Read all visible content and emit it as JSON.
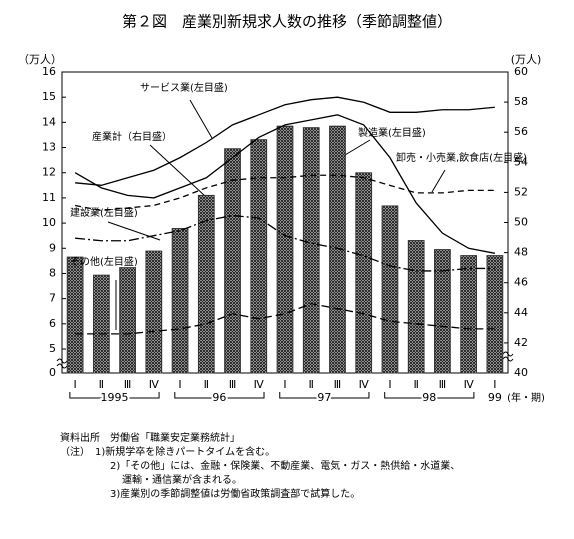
{
  "chart_data": {
    "type": "bar",
    "title": "第２図　産業別新規求人数の推移（季節調整値）",
    "categories": [
      "Ⅰ",
      "Ⅱ",
      "Ⅲ",
      "Ⅳ",
      "Ⅰ",
      "Ⅱ",
      "Ⅲ",
      "Ⅳ",
      "Ⅰ",
      "Ⅱ",
      "Ⅲ",
      "Ⅳ",
      "Ⅰ",
      "Ⅱ",
      "Ⅲ",
      "Ⅳ",
      "Ⅰ"
    ],
    "x_groups": [
      "1995",
      "96",
      "97",
      "98",
      "99"
    ],
    "xlabel": "(年・期)",
    "ylabel": "（万人）",
    "y2label": "(万人)",
    "ylim": [
      0,
      16
    ],
    "ybreak": [
      0,
      5
    ],
    "yticks": [
      0,
      5,
      6,
      7,
      8,
      9,
      10,
      11,
      12,
      13,
      14,
      15,
      16
    ],
    "y2lim": [
      40,
      60
    ],
    "y2ticks": [
      40,
      42,
      44,
      46,
      48,
      50,
      52,
      54,
      56,
      58,
      60
    ],
    "series": [
      {
        "name": "産業計（右目盛）",
        "axis": "y2",
        "kind": "bar",
        "color": "#333333",
        "values": [
          47.7,
          46.5,
          47.0,
          48.1,
          49.6,
          51.8,
          54.9,
          55.5,
          56.4,
          56.3,
          56.4,
          53.3,
          51.1,
          48.8,
          48.2,
          47.8,
          47.8
        ]
      },
      {
        "name": "サービス業(左目盛)",
        "kind": "line",
        "dash": "none",
        "color": "#000000",
        "values": [
          11.6,
          11.5,
          11.8,
          12.1,
          12.6,
          13.2,
          13.9,
          14.3,
          14.7,
          14.9,
          15.0,
          14.8,
          14.4,
          14.4,
          14.5,
          14.5,
          14.6
        ]
      },
      {
        "name": "製造業(左目盛)",
        "kind": "line",
        "dash": "none",
        "color": "#000000",
        "values": [
          12.0,
          11.4,
          11.1,
          11.0,
          11.4,
          11.8,
          12.6,
          13.4,
          13.9,
          14.1,
          14.3,
          13.9,
          12.6,
          10.8,
          9.6,
          9.0,
          8.8
        ]
      },
      {
        "name": "卸売・小売業,飲食店(左目盛)",
        "kind": "line",
        "dash": "6 4",
        "color": "#000000",
        "values": [
          10.7,
          10.5,
          10.6,
          10.7,
          11.0,
          11.4,
          11.7,
          11.8,
          11.8,
          11.9,
          11.9,
          11.8,
          11.5,
          11.2,
          11.2,
          11.3,
          11.3
        ]
      },
      {
        "name": "建設業(左目盛)",
        "kind": "line",
        "dash": "10 3 2 3",
        "color": "#000000",
        "values": [
          9.4,
          9.3,
          9.3,
          9.5,
          9.7,
          10.1,
          10.3,
          10.2,
          9.5,
          9.2,
          9.0,
          8.7,
          8.3,
          8.1,
          8.1,
          8.2,
          8.2
        ]
      },
      {
        "name": "その他(左目盛)",
        "kind": "line",
        "dash": "8 4",
        "color": "#000000",
        "values": [
          5.6,
          5.6,
          5.6,
          5.7,
          5.8,
          6.0,
          6.4,
          6.2,
          6.4,
          6.8,
          6.6,
          6.4,
          6.1,
          6.0,
          5.9,
          5.8,
          5.8
        ]
      }
    ]
  },
  "notes": [
    "資料出所　労働省「職業安定業務統計」",
    "（注）　1)新規学卒を除きパートタイムを含む。",
    "2)「その他」には、金融・保険業、不動産業、電気・ガス・熱供給・水道業、",
    "運輸・通信業が含まれる。",
    "3)産業別の季節調整値は労働省政策調査部で試算した。"
  ]
}
